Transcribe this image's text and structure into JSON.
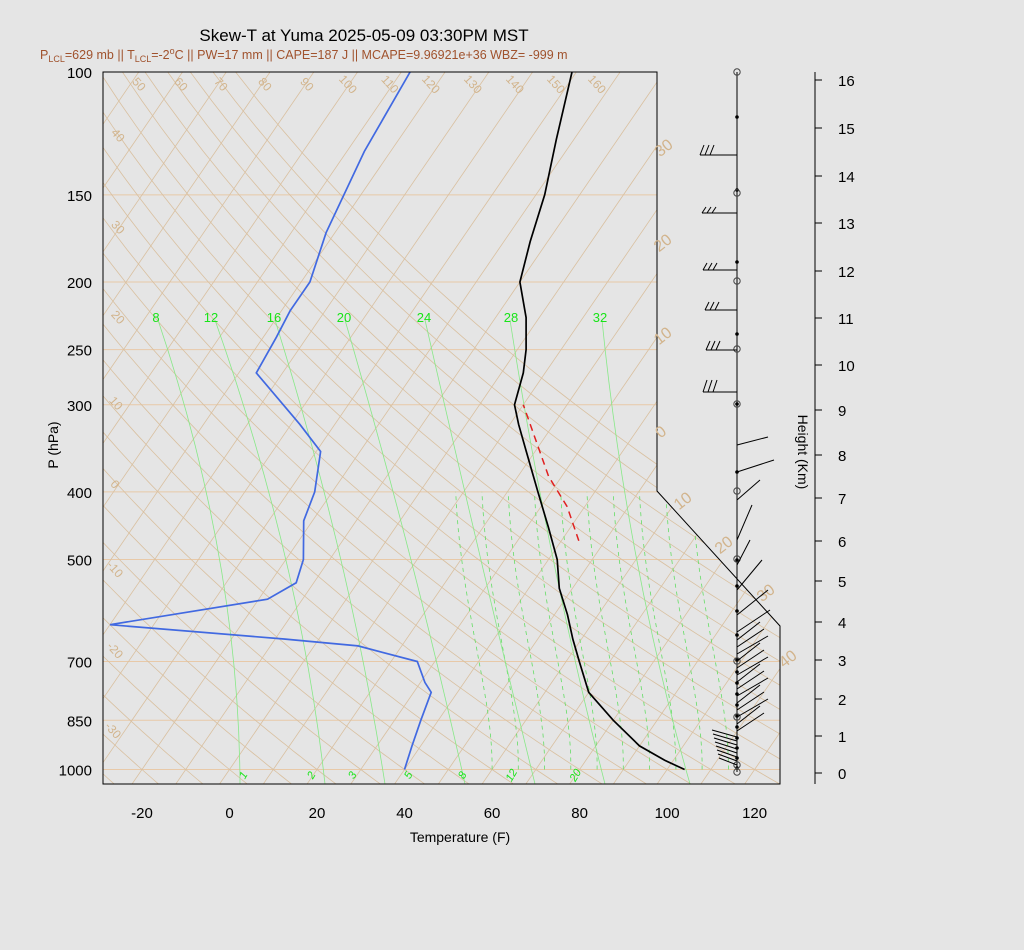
{
  "chart_data": {
    "type": "skew-t",
    "title": "Skew-T at Yuma 2025-05-09 03:30PM MST",
    "subtitle": "P=629 mb || T=-2°C || PW=17 mm || CAPE=187 J || MCAPE=9.96921e+36 WBZ= -999 m",
    "subtitle_parts": {
      "p_lcl": "P",
      "p_lcl_sub": "LCL",
      "p_lcl_val": "=629 mb || T",
      "t_lcl_sub": "LCL",
      "t_lcl_val": "=-2",
      "deg": "o",
      "rest": "C || PW=17 mm || CAPE=187 J || MCAPE=9.96921e+36 WBZ= -999 m"
    },
    "xlabel": "Temperature (F)",
    "ylabel": "P (hPa)",
    "y2label": "Height (Km)",
    "x_ticks": [
      "-20",
      "0",
      "20",
      "40",
      "60",
      "80",
      "100",
      "120"
    ],
    "p_ticks": [
      "100",
      "150",
      "200",
      "250",
      "300",
      "400",
      "500",
      "700",
      "850",
      "1000"
    ],
    "height_ticks": [
      "0",
      "1",
      "2",
      "3",
      "4",
      "5",
      "6",
      "7",
      "8",
      "9",
      "10",
      "11",
      "12",
      "13",
      "14",
      "15",
      "16"
    ],
    "mixing_ratio_top_labels": [
      "8",
      "12",
      "16",
      "20",
      "24",
      "28",
      "32"
    ],
    "mixing_ratio_bottom_labels": [
      "1",
      "2",
      "3",
      "5",
      "8",
      "12",
      "20"
    ],
    "isotherm_labels": [
      "50",
      "60",
      "70",
      "80",
      "90",
      "100",
      "110",
      "120",
      "130",
      "140",
      "150",
      "160",
      "40",
      "30",
      "20",
      "10",
      "0",
      "-10",
      "-20",
      "-30"
    ],
    "adiabat_labels": [
      "30",
      "20",
      "10",
      "0",
      "10",
      "20",
      "30",
      "40"
    ],
    "temperature_F": [
      {
        "p": 1000,
        "t": 104
      },
      {
        "p": 970,
        "t": 98
      },
      {
        "p": 925,
        "t": 90
      },
      {
        "p": 850,
        "t": 80
      },
      {
        "p": 775,
        "t": 70
      },
      {
        "p": 700,
        "t": 63
      },
      {
        "p": 650,
        "t": 58
      },
      {
        "p": 600,
        "t": 53
      },
      {
        "p": 550,
        "t": 47
      },
      {
        "p": 500,
        "t": 42
      },
      {
        "p": 450,
        "t": 35
      },
      {
        "p": 400,
        "t": 27
      },
      {
        "p": 350,
        "t": 18
      },
      {
        "p": 320,
        "t": 12
      },
      {
        "p": 300,
        "t": 8
      },
      {
        "p": 270,
        "t": 5
      },
      {
        "p": 250,
        "t": 2
      },
      {
        "p": 225,
        "t": -3
      },
      {
        "p": 200,
        "t": -10
      },
      {
        "p": 175,
        "t": -14
      },
      {
        "p": 150,
        "t": -18
      },
      {
        "p": 125,
        "t": -24
      },
      {
        "p": 100,
        "t": -31
      }
    ],
    "dewpoint_F": [
      {
        "p": 1000,
        "t": 40
      },
      {
        "p": 925,
        "t": 38
      },
      {
        "p": 850,
        "t": 36
      },
      {
        "p": 775,
        "t": 34
      },
      {
        "p": 750,
        "t": 31
      },
      {
        "p": 700,
        "t": 26
      },
      {
        "p": 665,
        "t": 10
      },
      {
        "p": 650,
        "t": -8
      },
      {
        "p": 620,
        "t": -50
      },
      {
        "p": 570,
        "t": -18
      },
      {
        "p": 540,
        "t": -14
      },
      {
        "p": 500,
        "t": -16
      },
      {
        "p": 440,
        "t": -22
      },
      {
        "p": 400,
        "t": -24
      },
      {
        "p": 350,
        "t": -29
      },
      {
        "p": 320,
        "t": -38
      },
      {
        "p": 270,
        "t": -56
      },
      {
        "p": 240,
        "t": -57
      },
      {
        "p": 220,
        "t": -58
      },
      {
        "p": 200,
        "t": -58
      },
      {
        "p": 170,
        "t": -62
      },
      {
        "p": 130,
        "t": -66
      },
      {
        "p": 100,
        "t": -68
      }
    ],
    "parcel_F": [
      {
        "p": 470,
        "t": 44
      },
      {
        "p": 420,
        "t": 36
      },
      {
        "p": 380,
        "t": 27
      },
      {
        "p": 340,
        "t": 19
      },
      {
        "p": 300,
        "t": 10
      }
    ],
    "xlim": [
      -30,
      125
    ],
    "plim": [
      1050,
      100
    ],
    "colors": {
      "temperature": "#000000",
      "dewpoint": "#4169e1",
      "parcel": "#e02020",
      "isotherm": "#d2b48c",
      "mixing": "#18e418"
    }
  }
}
